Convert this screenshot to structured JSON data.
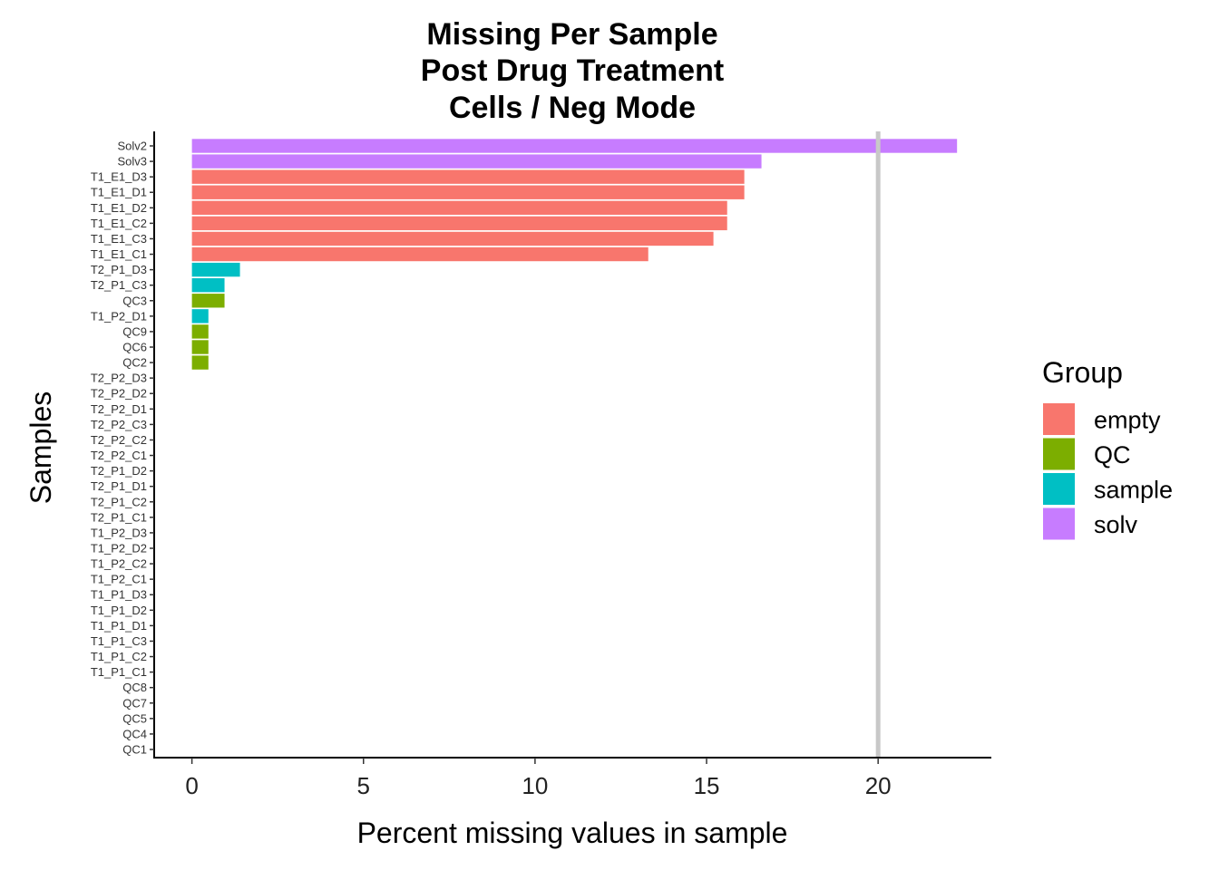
{
  "chart_data": {
    "type": "bar",
    "orientation": "horizontal",
    "title_lines": [
      "Missing Per Sample",
      "Post Drug Treatment",
      "Cells / Neg Mode"
    ],
    "xlabel": "Percent missing values in sample",
    "ylabel": "Samples",
    "xlim": [
      -1.1,
      23.3
    ],
    "xticks": [
      0,
      5,
      10,
      15,
      20
    ],
    "reference_line_x": 20,
    "grid": false,
    "legend": {
      "title": "Group",
      "placement": "right",
      "entries": [
        {
          "name": "empty",
          "color": "#F8766D"
        },
        {
          "name": "QC",
          "color": "#7CAE00"
        },
        {
          "name": "sample",
          "color": "#00BFC4"
        },
        {
          "name": "solv",
          "color": "#C77CFF"
        }
      ]
    },
    "samples": [
      {
        "label": "Solv2",
        "value": 22.3,
        "group": "solv"
      },
      {
        "label": "Solv3",
        "value": 16.6,
        "group": "solv"
      },
      {
        "label": "T1_E1_D3",
        "value": 16.1,
        "group": "empty"
      },
      {
        "label": "T1_E1_D1",
        "value": 16.1,
        "group": "empty"
      },
      {
        "label": "T1_E1_D2",
        "value": 15.6,
        "group": "empty"
      },
      {
        "label": "T1_E1_C2",
        "value": 15.6,
        "group": "empty"
      },
      {
        "label": "T1_E1_C3",
        "value": 15.2,
        "group": "empty"
      },
      {
        "label": "T1_E1_C1",
        "value": 13.3,
        "group": "empty"
      },
      {
        "label": "T2_P1_D3",
        "value": 1.4,
        "group": "sample"
      },
      {
        "label": "T2_P1_C3",
        "value": 0.95,
        "group": "sample"
      },
      {
        "label": "QC3",
        "value": 0.95,
        "group": "QC"
      },
      {
        "label": "T1_P2_D1",
        "value": 0.48,
        "group": "sample"
      },
      {
        "label": "QC9",
        "value": 0.48,
        "group": "QC"
      },
      {
        "label": "QC6",
        "value": 0.48,
        "group": "QC"
      },
      {
        "label": "QC2",
        "value": 0.48,
        "group": "QC"
      },
      {
        "label": "T2_P2_D3",
        "value": 0,
        "group": "sample"
      },
      {
        "label": "T2_P2_D2",
        "value": 0,
        "group": "sample"
      },
      {
        "label": "T2_P2_D1",
        "value": 0,
        "group": "sample"
      },
      {
        "label": "T2_P2_C3",
        "value": 0,
        "group": "sample"
      },
      {
        "label": "T2_P2_C2",
        "value": 0,
        "group": "sample"
      },
      {
        "label": "T2_P2_C1",
        "value": 0,
        "group": "sample"
      },
      {
        "label": "T2_P1_D2",
        "value": 0,
        "group": "sample"
      },
      {
        "label": "T2_P1_D1",
        "value": 0,
        "group": "sample"
      },
      {
        "label": "T2_P1_C2",
        "value": 0,
        "group": "sample"
      },
      {
        "label": "T2_P1_C1",
        "value": 0,
        "group": "sample"
      },
      {
        "label": "T1_P2_D3",
        "value": 0,
        "group": "sample"
      },
      {
        "label": "T1_P2_D2",
        "value": 0,
        "group": "sample"
      },
      {
        "label": "T1_P2_C2",
        "value": 0,
        "group": "sample"
      },
      {
        "label": "T1_P2_C1",
        "value": 0,
        "group": "sample"
      },
      {
        "label": "T1_P1_D3",
        "value": 0,
        "group": "sample"
      },
      {
        "label": "T1_P1_D2",
        "value": 0,
        "group": "sample"
      },
      {
        "label": "T1_P1_D1",
        "value": 0,
        "group": "sample"
      },
      {
        "label": "T1_P1_C3",
        "value": 0,
        "group": "sample"
      },
      {
        "label": "T1_P1_C2",
        "value": 0,
        "group": "sample"
      },
      {
        "label": "T1_P1_C1",
        "value": 0,
        "group": "sample"
      },
      {
        "label": "QC8",
        "value": 0,
        "group": "QC"
      },
      {
        "label": "QC7",
        "value": 0,
        "group": "QC"
      },
      {
        "label": "QC5",
        "value": 0,
        "group": "QC"
      },
      {
        "label": "QC4",
        "value": 0,
        "group": "QC"
      },
      {
        "label": "QC1",
        "value": 0,
        "group": "QC"
      }
    ]
  }
}
